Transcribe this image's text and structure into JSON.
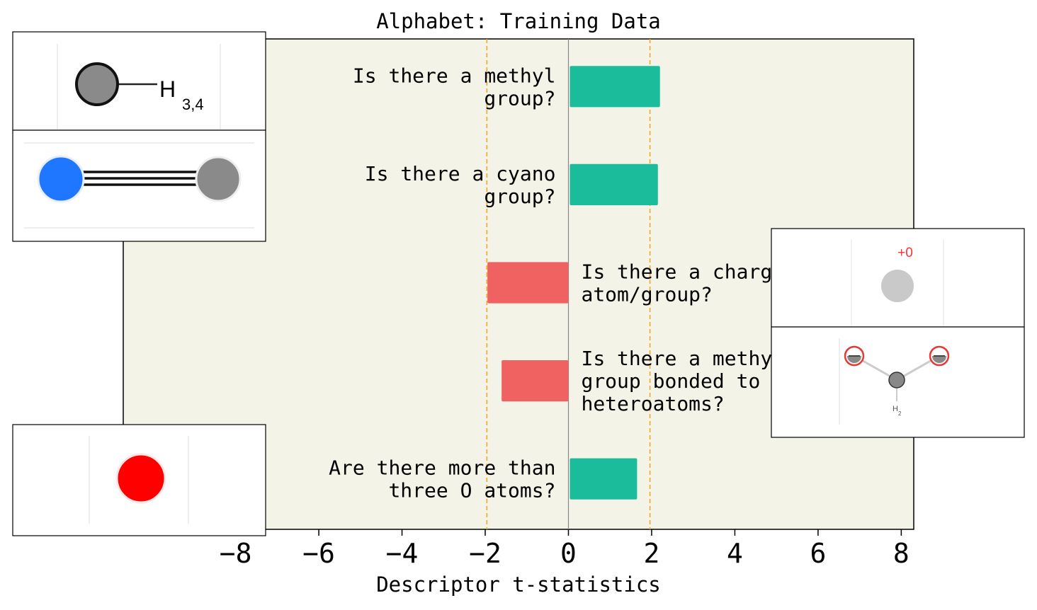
{
  "chart_data": {
    "type": "bar",
    "orientation": "horizontal",
    "title": "Alphabet: Training Data",
    "xlabel": "Descriptor t-statistics",
    "xlim": [
      -10.7,
      8.3
    ],
    "xticks": [
      -8,
      -6,
      -4,
      -2,
      0,
      2,
      4,
      6,
      8
    ],
    "xtick_labels": [
      "−8",
      "−6",
      "−4",
      "−2",
      "0",
      "2",
      "4",
      "6",
      "8"
    ],
    "significance_lines": [
      -1.96,
      1.96
    ],
    "colors": {
      "positive": "#1abc9c",
      "negative": "#f06262",
      "threshold": "#f5a623",
      "background": "#f3f3e8"
    },
    "bars": [
      {
        "label_lines": [
          "Is there a methyl",
          "group?"
        ],
        "value": 2.2,
        "molecule_icon": "methyl-group-icon"
      },
      {
        "label_lines": [
          "Is there a cyano",
          "group?"
        ],
        "value": 2.15,
        "molecule_icon": "cyano-group-icon"
      },
      {
        "label_lines": [
          "Is there a charged",
          "atom/group?"
        ],
        "value": -1.98,
        "molecule_icon": "charged-atom-icon"
      },
      {
        "label_lines": [
          "Is there a methylene",
          "group bonded to two",
          "heteroatoms?"
        ],
        "value": -1.64,
        "molecule_icon": "methylene-heteroatoms-icon"
      },
      {
        "label_lines": [
          "Are there more than",
          "three O atoms?"
        ],
        "value": 1.65,
        "molecule_icon": "oxygen-atom-icon"
      }
    ],
    "molecule_labels": {
      "methyl_h": "H",
      "methyl_sub": "3,4",
      "charge": "+0",
      "methylene_h": "H",
      "methylene_sub": "2"
    },
    "grid": false
  }
}
